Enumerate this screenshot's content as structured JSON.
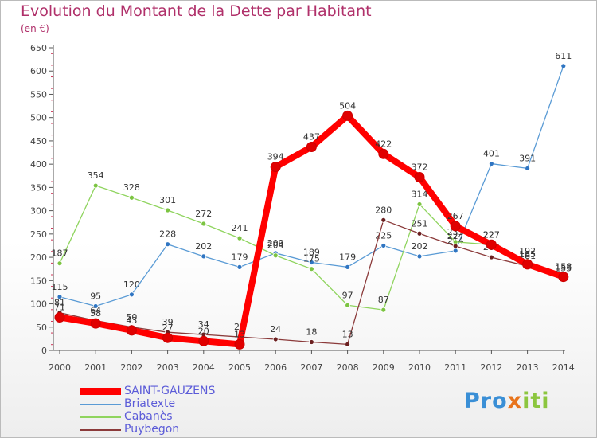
{
  "chart_data": {
    "type": "line",
    "title": "Evolution du Montant de la Dette par Habitant",
    "unit": "(en €)",
    "x": [
      "2000",
      "2001",
      "2002",
      "2003",
      "2004",
      "2005",
      "2006",
      "2007",
      "2008",
      "2009",
      "2010",
      "2011",
      "2012",
      "2013",
      "2014"
    ],
    "yticks": [
      0,
      50,
      100,
      150,
      200,
      250,
      300,
      350,
      400,
      450,
      500,
      550,
      600,
      650
    ],
    "ylim": [
      0,
      650
    ],
    "series": [
      {
        "name": "Briatexte",
        "color": "#5a9bd5",
        "dot": "#2f75c2",
        "values": [
          115,
          95,
          120,
          228,
          202,
          179,
          209,
          189,
          179,
          225,
          202,
          214,
          401,
          391,
          611
        ],
        "labels": [
          "115",
          "95",
          "120",
          "228",
          "202",
          "179",
          "209",
          "189",
          "179",
          "225",
          "202",
          "214",
          "401",
          "391",
          "611"
        ]
      },
      {
        "name": "Cabanès",
        "color": "#8fd45e",
        "dot": "#7cc442",
        "values": [
          187,
          354,
          328,
          301,
          272,
          241,
          204,
          175,
          97,
          87,
          314,
          233,
          227,
          192,
          155
        ],
        "labels": [
          "187",
          "354",
          "328",
          "301",
          "272",
          "241",
          "204",
          "175",
          "97",
          "87",
          "314",
          "233",
          "227",
          "192",
          "155"
        ]
      },
      {
        "name": "Puybegon",
        "color": "#8b3a3a",
        "dot": "#6b1f1f",
        "values": [
          81,
          64,
          50,
          39,
          34,
          29,
          24,
          18,
          13,
          280,
          251,
          224,
          200,
          181,
          158
        ],
        "labels": [
          "81",
          "64",
          "50",
          "39",
          "34",
          "29",
          "24",
          "18",
          "13",
          "280",
          "251",
          "224",
          "200",
          "181",
          "158"
        ]
      },
      {
        "name": "SAINT-GAUZENS",
        "color": "#ff0000",
        "dot": "#e00000",
        "values": [
          71,
          58,
          43,
          27,
          20,
          13,
          394,
          437,
          504,
          422,
          372,
          267,
          227,
          185,
          158
        ],
        "labels": [
          "71",
          "58",
          "43",
          "27",
          "20",
          "13",
          "394",
          "437",
          "504",
          "422",
          "372",
          "267",
          "227",
          "185",
          "158"
        ]
      }
    ],
    "legend": [
      "SAINT-GAUZENS",
      "Briatexte",
      "Cabanès",
      "Puybegon"
    ],
    "legend_position": "bottom-left",
    "grid": false
  },
  "logo": {
    "part1": "Pro",
    "x": "x",
    "part2": "iti"
  }
}
